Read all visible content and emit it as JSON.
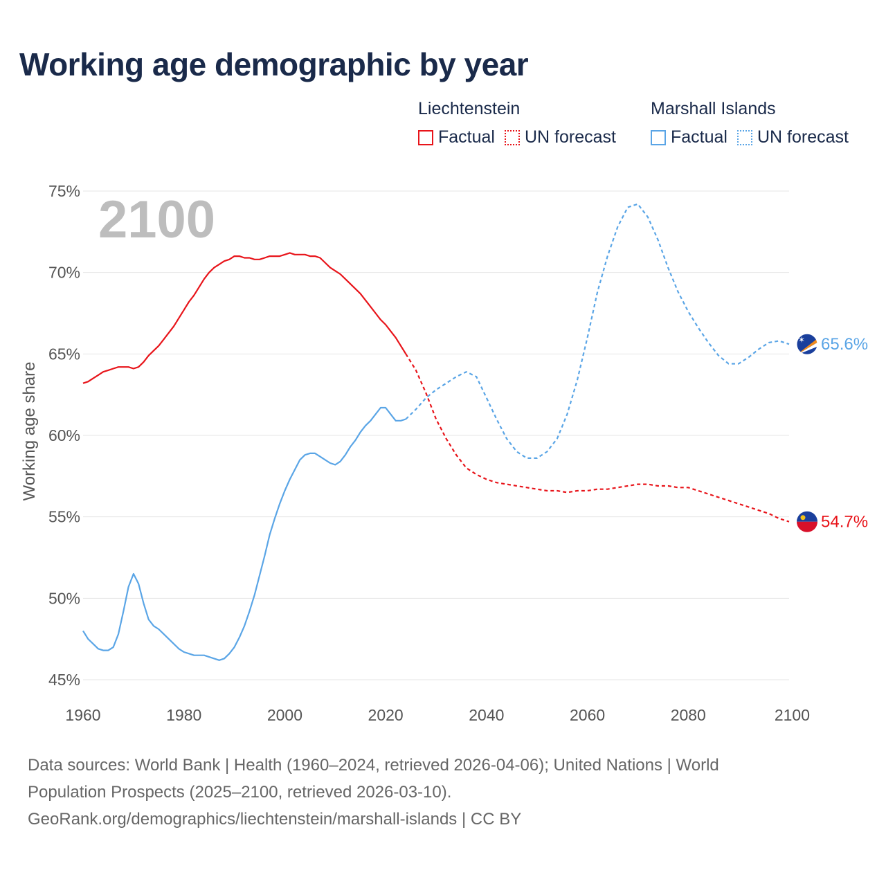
{
  "title": "Working age demographic by year",
  "legend": {
    "groups": [
      {
        "name": "Liechtenstein",
        "color": "#e8141a",
        "factual_label": "Factual",
        "forecast_label": "UN forecast"
      },
      {
        "name": "Marshall Islands",
        "color": "#5aa5e6",
        "factual_label": "Factual",
        "forecast_label": "UN forecast"
      }
    ]
  },
  "footer": {
    "line1": "Data sources: World Bank | Health (1960–2024, retrieved 2026-04-06); United Nations | World",
    "line2": "Population Prospects (2025–2100, retrieved 2026-03-10).",
    "line3": "GeoRank.org/demographics/liechtenstein/marshall-islands | CC BY"
  },
  "chart_data": {
    "type": "line",
    "title": "Working age demographic by year",
    "year_label": "2100",
    "xlabel": "",
    "ylabel": "Working age share",
    "xlim": [
      1960,
      2100
    ],
    "ylim": [
      45,
      75
    ],
    "x_ticks": [
      1960,
      1980,
      2000,
      2020,
      2040,
      2060,
      2080,
      2100
    ],
    "y_ticks": [
      45,
      50,
      55,
      60,
      65,
      70,
      75
    ],
    "y_tick_suffix": "%",
    "grid": true,
    "legend_position": "top-right",
    "series": [
      {
        "name": "Liechtenstein",
        "color": "#e8141a",
        "end_label": "54.7%",
        "factual_x": [
          1960,
          1961,
          1962,
          1963,
          1964,
          1965,
          1966,
          1967,
          1968,
          1969,
          1970,
          1971,
          1972,
          1973,
          1974,
          1975,
          1976,
          1977,
          1978,
          1979,
          1980,
          1981,
          1982,
          1983,
          1984,
          1985,
          1986,
          1987,
          1988,
          1989,
          1990,
          1991,
          1992,
          1993,
          1994,
          1995,
          1996,
          1997,
          1998,
          1999,
          2000,
          2001,
          2002,
          2003,
          2004,
          2005,
          2006,
          2007,
          2008,
          2009,
          2010,
          2011,
          2012,
          2013,
          2014,
          2015,
          2016,
          2017,
          2018,
          2019,
          2020,
          2021,
          2022,
          2023,
          2024
        ],
        "factual_y": [
          63.2,
          63.3,
          63.5,
          63.7,
          63.9,
          64.0,
          64.1,
          64.2,
          64.2,
          64.2,
          64.1,
          64.2,
          64.5,
          64.9,
          65.2,
          65.5,
          65.9,
          66.3,
          66.7,
          67.2,
          67.7,
          68.2,
          68.6,
          69.1,
          69.6,
          70.0,
          70.3,
          70.5,
          70.7,
          70.8,
          71.0,
          71.0,
          70.9,
          70.9,
          70.8,
          70.8,
          70.9,
          71.0,
          71.0,
          71.0,
          71.1,
          71.2,
          71.1,
          71.1,
          71.1,
          71.0,
          71.0,
          70.9,
          70.6,
          70.3,
          70.1,
          69.9,
          69.6,
          69.3,
          69.0,
          68.7,
          68.3,
          67.9,
          67.5,
          67.1,
          66.8,
          66.4,
          66.0,
          65.5,
          65.0
        ],
        "forecast_x": [
          2024,
          2026,
          2028,
          2030,
          2032,
          2034,
          2036,
          2038,
          2040,
          2042,
          2044,
          2046,
          2048,
          2050,
          2052,
          2054,
          2056,
          2058,
          2060,
          2062,
          2064,
          2066,
          2068,
          2070,
          2072,
          2074,
          2076,
          2078,
          2080,
          2082,
          2084,
          2086,
          2088,
          2090,
          2092,
          2094,
          2096,
          2098,
          2100
        ],
        "forecast_y": [
          65.0,
          64.0,
          62.6,
          61.0,
          59.8,
          58.8,
          58.0,
          57.6,
          57.3,
          57.1,
          57.0,
          56.9,
          56.8,
          56.7,
          56.6,
          56.6,
          56.5,
          56.6,
          56.6,
          56.7,
          56.7,
          56.8,
          56.9,
          57.0,
          57.0,
          56.9,
          56.9,
          56.8,
          56.8,
          56.6,
          56.4,
          56.2,
          56.0,
          55.8,
          55.6,
          55.4,
          55.2,
          54.9,
          54.7
        ]
      },
      {
        "name": "Marshall Islands",
        "color": "#5aa5e6",
        "end_label": "65.6%",
        "factual_x": [
          1960,
          1961,
          1962,
          1963,
          1964,
          1965,
          1966,
          1967,
          1968,
          1969,
          1970,
          1971,
          1972,
          1973,
          1974,
          1975,
          1976,
          1977,
          1978,
          1979,
          1980,
          1981,
          1982,
          1983,
          1984,
          1985,
          1986,
          1987,
          1988,
          1989,
          1990,
          1991,
          1992,
          1993,
          1994,
          1995,
          1996,
          1997,
          1998,
          1999,
          2000,
          2001,
          2002,
          2003,
          2004,
          2005,
          2006,
          2007,
          2008,
          2009,
          2010,
          2011,
          2012,
          2013,
          2014,
          2015,
          2016,
          2017,
          2018,
          2019,
          2020,
          2021,
          2022,
          2023,
          2024
        ],
        "factual_y": [
          48.0,
          47.5,
          47.2,
          46.9,
          46.8,
          46.8,
          47.0,
          47.8,
          49.2,
          50.7,
          51.5,
          50.9,
          49.7,
          48.7,
          48.3,
          48.1,
          47.8,
          47.5,
          47.2,
          46.9,
          46.7,
          46.6,
          46.5,
          46.5,
          46.5,
          46.4,
          46.3,
          46.2,
          46.3,
          46.6,
          47.0,
          47.6,
          48.3,
          49.2,
          50.2,
          51.4,
          52.6,
          53.9,
          54.9,
          55.8,
          56.6,
          57.3,
          57.9,
          58.5,
          58.8,
          58.9,
          58.9,
          58.7,
          58.5,
          58.3,
          58.2,
          58.4,
          58.8,
          59.3,
          59.7,
          60.2,
          60.6,
          60.9,
          61.3,
          61.7,
          61.7,
          61.3,
          60.9,
          60.9,
          61.0
        ],
        "forecast_x": [
          2024,
          2026,
          2028,
          2030,
          2032,
          2034,
          2036,
          2038,
          2040,
          2042,
          2044,
          2046,
          2048,
          2050,
          2052,
          2054,
          2056,
          2058,
          2060,
          2062,
          2064,
          2066,
          2068,
          2070,
          2072,
          2074,
          2076,
          2078,
          2080,
          2082,
          2084,
          2086,
          2088,
          2090,
          2092,
          2094,
          2096,
          2098,
          2100
        ],
        "forecast_y": [
          61.0,
          61.6,
          62.3,
          62.8,
          63.2,
          63.6,
          63.9,
          63.6,
          62.3,
          61.0,
          59.8,
          59.0,
          58.6,
          58.6,
          59.0,
          59.8,
          61.3,
          63.4,
          66.0,
          68.8,
          71.0,
          72.8,
          74.0,
          74.2,
          73.4,
          72.0,
          70.3,
          68.8,
          67.6,
          66.6,
          65.7,
          64.9,
          64.4,
          64.4,
          64.8,
          65.3,
          65.7,
          65.8,
          65.6
        ]
      }
    ]
  }
}
